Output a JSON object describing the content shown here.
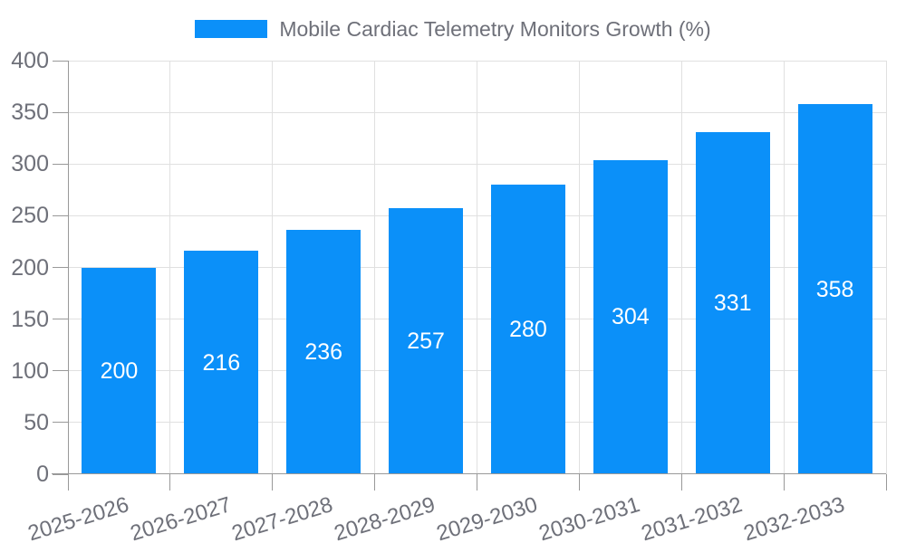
{
  "chart_data": {
    "type": "bar",
    "title": "Mobile Cardiac Telemetry Monitors Growth (%)",
    "legend": "Mobile Cardiac Telemetry Monitors Growth (%)",
    "legend_position": "top-center",
    "categories": [
      "2025-2026",
      "2026-2027",
      "2027-2028",
      "2028-2029",
      "2029-2030",
      "2030-2031",
      "2031-2032",
      "2032-2033"
    ],
    "series": [
      {
        "name": "Mobile Cardiac Telemetry Monitors Growth (%)",
        "values": [
          200,
          216,
          236,
          257,
          280,
          304,
          331,
          358
        ]
      }
    ],
    "value_labels_shown": true,
    "value_label_position": "inside-center",
    "xlabel": "",
    "ylabel": "",
    "ylim": [
      0,
      400
    ],
    "yticks": [
      0,
      50,
      100,
      150,
      200,
      250,
      300,
      350,
      400
    ],
    "grid": true,
    "x_label_rotation_deg": -17,
    "colors": {
      "bar": "#0B90F9",
      "bar_label": "#FFFFFF",
      "axis_label": "#6E7079",
      "axis_line": "#999999",
      "grid_line": "#E0E0E0",
      "background": "#FFFFFF"
    }
  }
}
